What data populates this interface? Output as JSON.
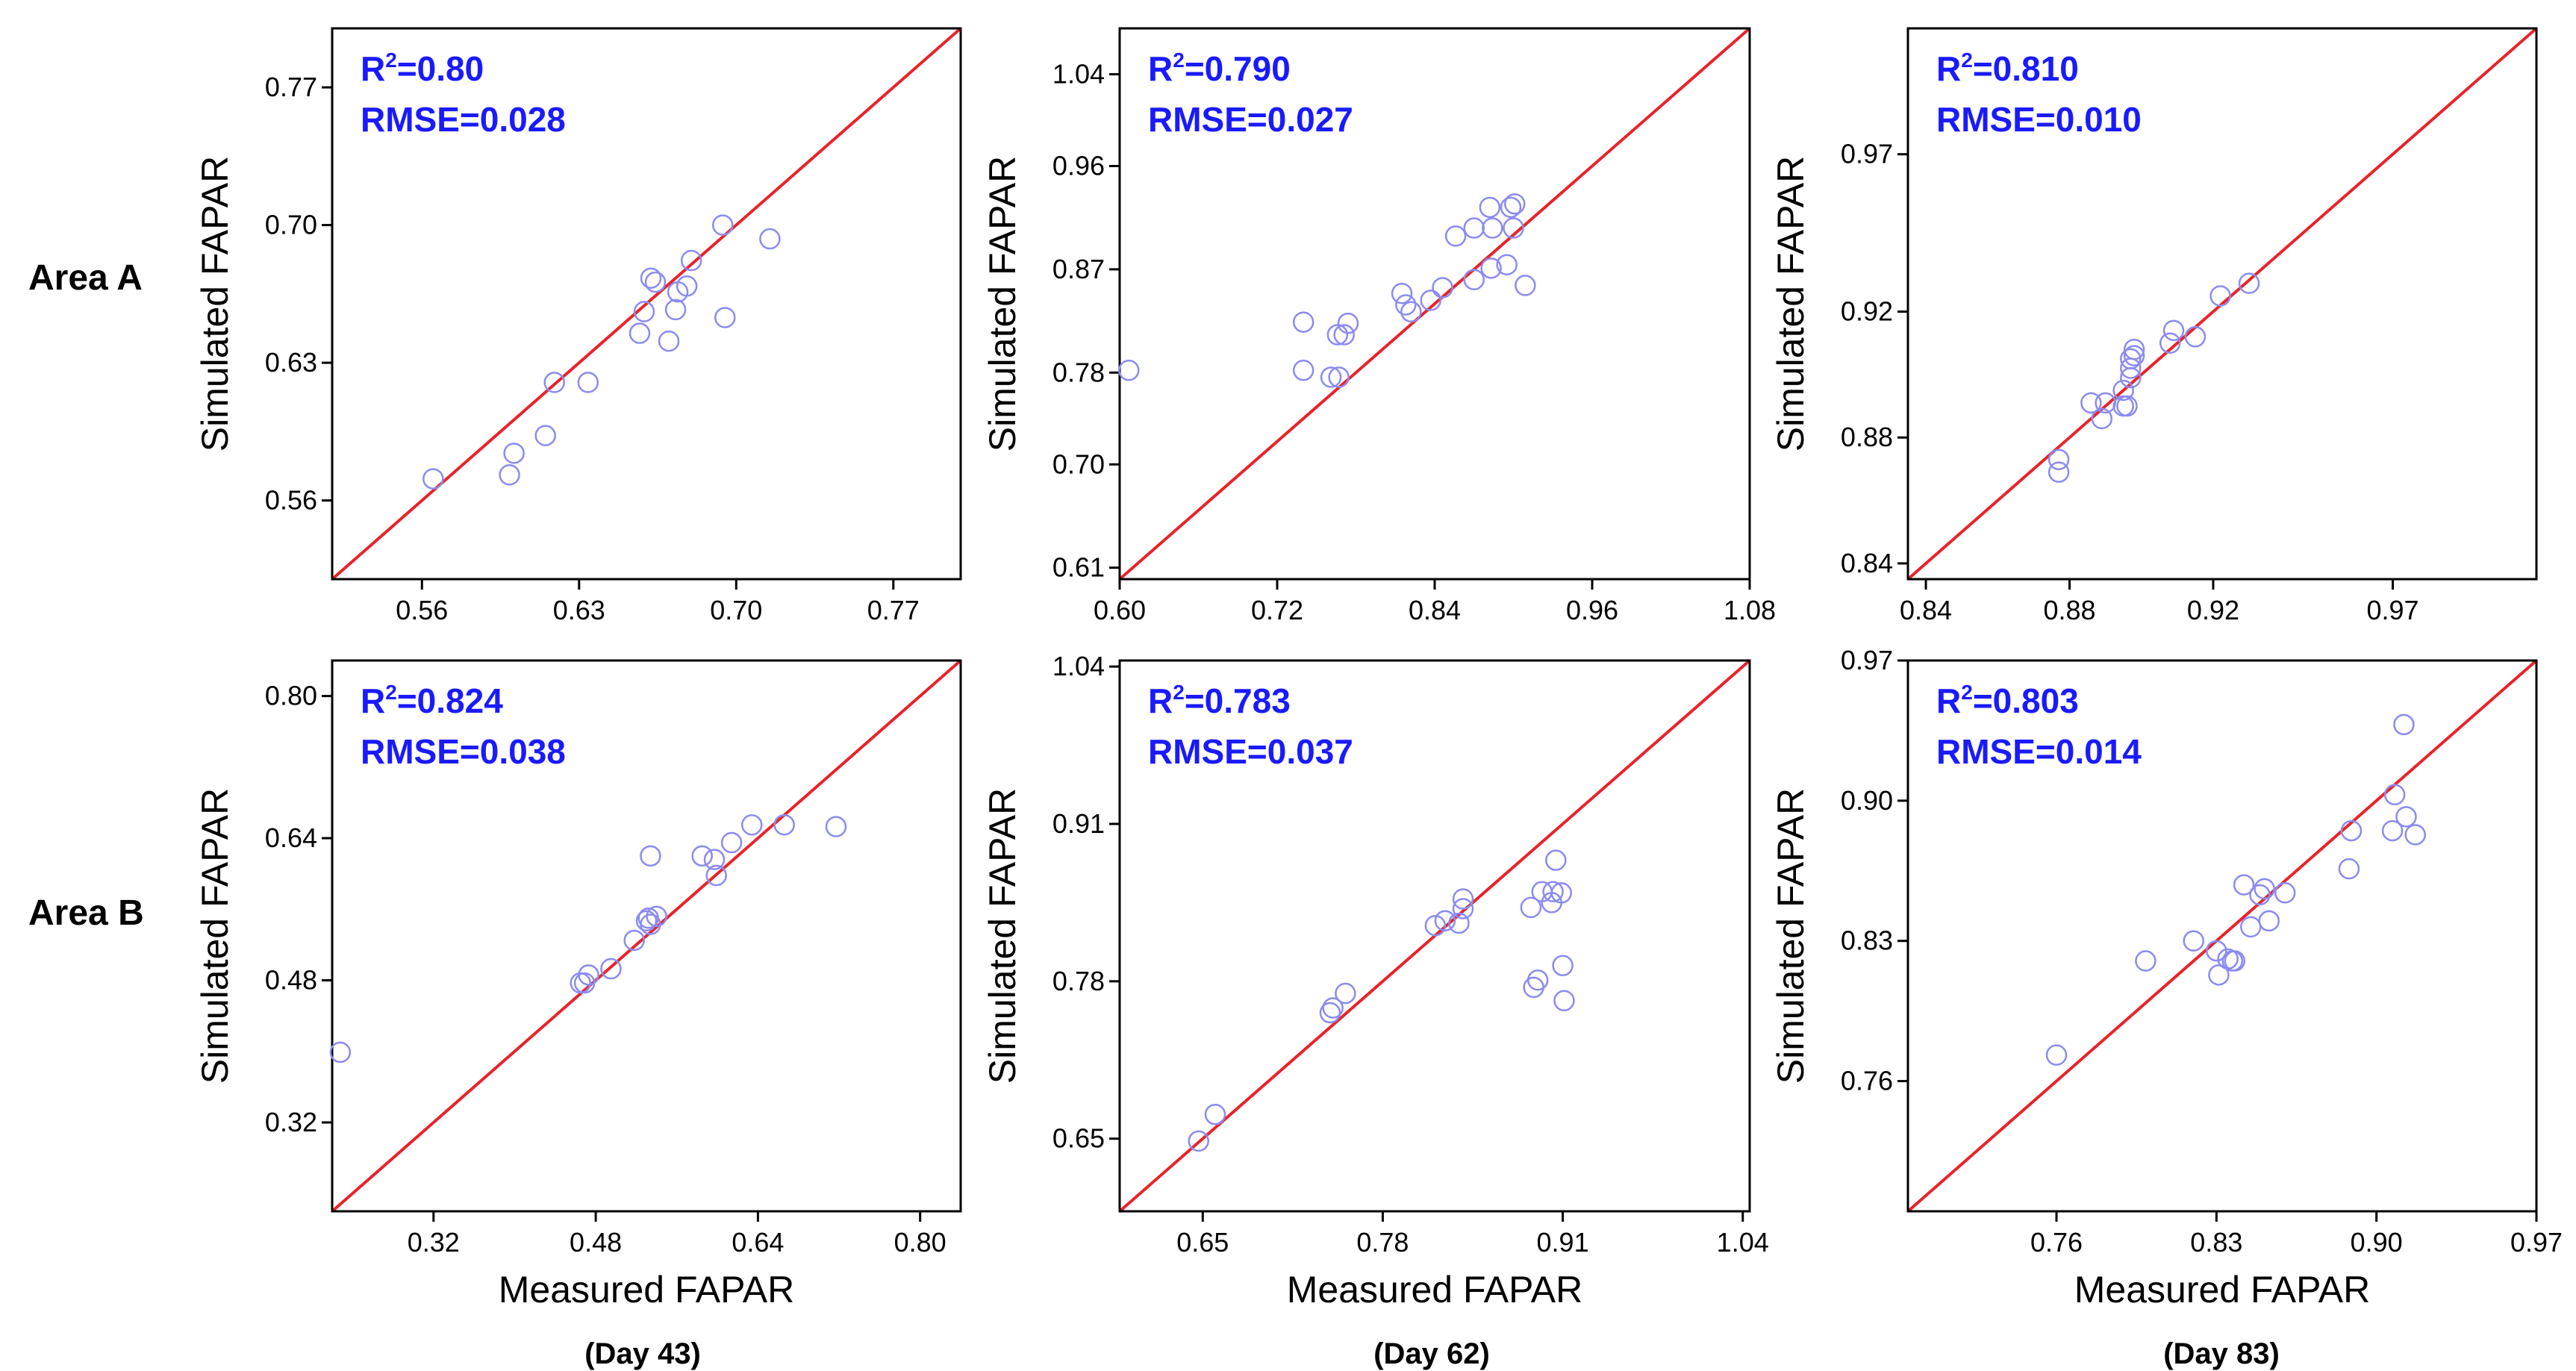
{
  "row_labels": [
    "Area A",
    "Area B"
  ],
  "day_labels": [
    "(Day 43)",
    "(Day 62)",
    "(Day 83)"
  ],
  "colors": {
    "line": "#e8232b",
    "points": "#8b8bf0",
    "stats": "#1a1aff",
    "axis": "#000000"
  },
  "chart_data": [
    {
      "type": "scatter",
      "row": "Area A",
      "day": "(Day 43)",
      "xlabel": "",
      "ylabel": "Simulated FAPAR",
      "xlim": [
        0.52,
        0.8
      ],
      "ylim": [
        0.52,
        0.8
      ],
      "xticks": [
        "0.56",
        "0.63",
        "0.70",
        "0.77"
      ],
      "yticks": [
        "0.56",
        "0.63",
        "0.70",
        "0.77"
      ],
      "stats": {
        "r2_label": "R",
        "r2_sup": "2",
        "r2_value": "=0.80",
        "rmse": "RMSE=0.028"
      },
      "one_to_one": true,
      "x": [
        0.565,
        0.599,
        0.601,
        0.615,
        0.619,
        0.634,
        0.657,
        0.659,
        0.662,
        0.664,
        0.67,
        0.673,
        0.674,
        0.678,
        0.68,
        0.694,
        0.695,
        0.715
      ],
      "y": [
        0.571,
        0.573,
        0.584,
        0.593,
        0.62,
        0.62,
        0.645,
        0.656,
        0.673,
        0.671,
        0.641,
        0.657,
        0.666,
        0.669,
        0.682,
        0.7,
        0.653,
        0.693
      ]
    },
    {
      "type": "scatter",
      "row": "Area A",
      "day": "(Day 62)",
      "xlabel": "",
      "ylabel": "Simulated FAPAR",
      "xlim": [
        0.6,
        1.08
      ],
      "ylim": [
        0.6,
        1.08
      ],
      "xticks": [
        "0.60",
        "0.72",
        "0.84",
        "0.96",
        "1.08"
      ],
      "yticks": [
        "0.61",
        "0.70",
        "0.78",
        "0.87",
        "0.96",
        "1.04"
      ],
      "stats": {
        "r2_label": "R",
        "r2_sup": "2",
        "r2_value": "=0.790",
        "rmse": "RMSE=0.027"
      },
      "one_to_one": true,
      "x": [
        0.607,
        0.74,
        0.74,
        0.761,
        0.766,
        0.767,
        0.771,
        0.774,
        0.815,
        0.818,
        0.822,
        0.837,
        0.846,
        0.856,
        0.87,
        0.87,
        0.882,
        0.883,
        0.884,
        0.895,
        0.898,
        0.9,
        0.901,
        0.909
      ],
      "y": [
        0.782,
        0.782,
        0.824,
        0.776,
        0.813,
        0.776,
        0.813,
        0.823,
        0.849,
        0.839,
        0.833,
        0.843,
        0.854,
        0.899,
        0.861,
        0.906,
        0.924,
        0.871,
        0.906,
        0.874,
        0.924,
        0.906,
        0.927,
        0.856
      ]
    },
    {
      "type": "scatter",
      "row": "Area A",
      "day": "(Day 83)",
      "xlabel": "",
      "ylabel": "Simulated FAPAR",
      "xlim": [
        0.835,
        1.01
      ],
      "ylim": [
        0.835,
        1.01
      ],
      "xticks": [
        "0.84",
        "0.88",
        "0.92",
        "0.97"
      ],
      "yticks": [
        "0.84",
        "0.88",
        "0.92",
        "0.97"
      ],
      "stats": {
        "r2_label": "R",
        "r2_sup": "2",
        "r2_value": "=0.810",
        "rmse": "RMSE=0.010"
      },
      "one_to_one": true,
      "x": [
        0.877,
        0.877,
        0.886,
        0.889,
        0.89,
        0.895,
        0.895,
        0.896,
        0.897,
        0.897,
        0.897,
        0.898,
        0.898,
        0.908,
        0.909,
        0.915,
        0.922,
        0.93
      ],
      "y": [
        0.869,
        0.873,
        0.891,
        0.886,
        0.891,
        0.89,
        0.895,
        0.89,
        0.899,
        0.902,
        0.905,
        0.906,
        0.908,
        0.91,
        0.914,
        0.912,
        0.925,
        0.929
      ]
    },
    {
      "type": "scatter",
      "row": "Area B",
      "day": "(Day 43)",
      "xlabel": "Measured FAPAR",
      "ylabel": "Simulated FAPAR",
      "xlim": [
        0.22,
        0.84
      ],
      "ylim": [
        0.22,
        0.84
      ],
      "xticks": [
        "0.32",
        "0.48",
        "0.64",
        "0.80"
      ],
      "yticks": [
        "0.32",
        "0.48",
        "0.64",
        "0.80"
      ],
      "stats": {
        "r2_label": "R",
        "r2_sup": "2",
        "r2_value": "=0.824",
        "rmse": "RMSE=0.038"
      },
      "one_to_one": true,
      "x": [
        0.228,
        0.465,
        0.473,
        0.469,
        0.495,
        0.518,
        0.53,
        0.532,
        0.534,
        0.534,
        0.54,
        0.585,
        0.597,
        0.599,
        0.614,
        0.634,
        0.666,
        0.717
      ],
      "y": [
        0.399,
        0.477,
        0.486,
        0.477,
        0.493,
        0.525,
        0.547,
        0.55,
        0.543,
        0.62,
        0.552,
        0.62,
        0.616,
        0.598,
        0.635,
        0.655,
        0.655,
        0.653
      ]
    },
    {
      "type": "scatter",
      "row": "Area B",
      "day": "(Day 62)",
      "xlabel": "Measured FAPAR",
      "ylabel": "Simulated FAPAR",
      "xlim": [
        0.59,
        1.045
      ],
      "ylim": [
        0.59,
        1.045
      ],
      "xticks": [
        "0.65",
        "0.78",
        "0.91",
        "1.04"
      ],
      "yticks": [
        "0.65",
        "0.78",
        "0.91",
        "1.04"
      ],
      "stats": {
        "r2_label": "R",
        "r2_sup": "2",
        "r2_value": "=0.783",
        "rmse": "RMSE=0.037"
      },
      "one_to_one": true,
      "x": [
        0.647,
        0.659,
        0.742,
        0.744,
        0.753,
        0.818,
        0.825,
        0.835,
        0.838,
        0.838,
        0.887,
        0.889,
        0.892,
        0.895,
        0.902,
        0.903,
        0.905,
        0.909,
        0.91,
        0.911
      ],
      "y": [
        0.648,
        0.67,
        0.754,
        0.758,
        0.77,
        0.826,
        0.83,
        0.828,
        0.84,
        0.848,
        0.841,
        0.775,
        0.781,
        0.854,
        0.845,
        0.854,
        0.88,
        0.853,
        0.793,
        0.764
      ]
    },
    {
      "type": "scatter",
      "row": "Area B",
      "day": "(Day 83)",
      "xlabel": "Measured FAPAR",
      "ylabel": "Simulated FAPAR",
      "xlim": [
        0.695,
        0.97
      ],
      "ylim": [
        0.695,
        0.97
      ],
      "xticks": [
        "0.76",
        "0.83",
        "0.90",
        "0.97"
      ],
      "yticks": [
        "0.76",
        "0.83",
        "0.90",
        "0.97"
      ],
      "stats": {
        "r2_label": "R",
        "r2_sup": "2",
        "r2_value": "=0.803",
        "rmse": "RMSE=0.014"
      },
      "one_to_one": true,
      "x": [
        0.76,
        0.799,
        0.82,
        0.83,
        0.831,
        0.835,
        0.837,
        0.838,
        0.842,
        0.845,
        0.849,
        0.851,
        0.853,
        0.86,
        0.888,
        0.889,
        0.907,
        0.908,
        0.912,
        0.913,
        0.917
      ],
      "y": [
        0.773,
        0.82,
        0.83,
        0.825,
        0.813,
        0.821,
        0.82,
        0.82,
        0.858,
        0.837,
        0.853,
        0.856,
        0.84,
        0.854,
        0.866,
        0.885,
        0.885,
        0.903,
        0.938,
        0.892,
        0.883
      ]
    }
  ]
}
